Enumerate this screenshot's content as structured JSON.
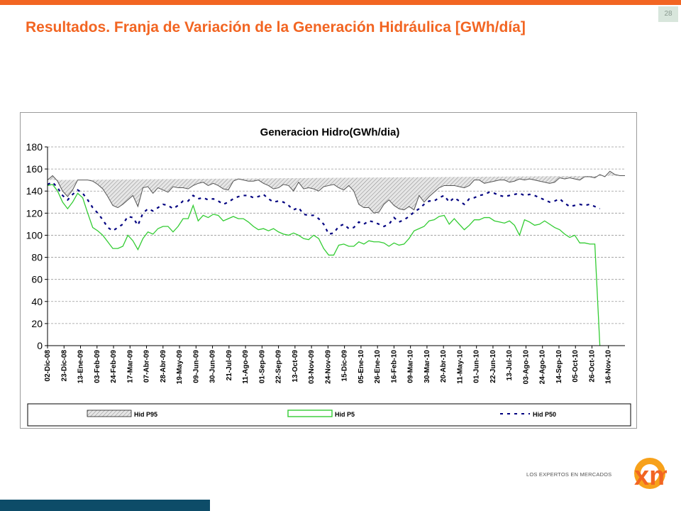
{
  "slide": {
    "page_number": "28",
    "title": "Resultados. Franja de Variación de la Generación Hidráulica [GWh/día]",
    "logo_text": "LOS EXPERTOS EN MERCADOS",
    "logo_mark": "xm"
  },
  "colors": {
    "accent": "#f26522",
    "footer": "#0d4c68",
    "p5_line": "#33cc33",
    "p50_line": "#000080",
    "band": "#d9d9d9"
  },
  "chart_data": {
    "type": "area",
    "title": "Generacion Hidro(GWh/dia)",
    "xlabel": "",
    "ylabel": "",
    "ylim": [
      0,
      180
    ],
    "yticks": [
      0,
      20,
      40,
      60,
      80,
      100,
      120,
      140,
      160,
      180
    ],
    "grid": true,
    "legend_position": "bottom",
    "x_tick_labels": [
      "02-Dic-08",
      "23-Dic-08",
      "13-Ene-09",
      "03-Feb-09",
      "24-Feb-09",
      "17-Mar-09",
      "07-Abr-09",
      "28-Abr-09",
      "19-May-09",
      "09-Jun-09",
      "30-Jun-09",
      "21-Jul-09",
      "11-Ago-09",
      "01-Sep-09",
      "22-Sep-09",
      "13-Oct-09",
      "03-Nov-09",
      "24-Nov-09",
      "15-Dic-09",
      "05-Ene-10",
      "26-Ene-10",
      "16-Feb-10",
      "09-Mar-10",
      "30-Mar-10",
      "20-Abr-10",
      "11-May-10",
      "01-Jun-10",
      "22-Jun-10",
      "13-Jul-10",
      "03-Ago-10",
      "24-Ago-10",
      "14-Sep-10",
      "05-Oct-10",
      "26-Oct-10",
      "16-Nov-10"
    ],
    "series": [
      {
        "name": "Hid P95",
        "values": [
          150,
          154,
          149,
          140,
          135,
          141,
          150,
          150,
          150,
          149,
          146,
          142,
          135,
          127,
          125,
          128,
          132,
          136,
          126,
          143,
          144,
          138,
          143,
          141,
          139,
          144,
          143,
          143,
          142,
          145,
          147,
          148,
          145,
          147,
          145,
          142,
          141,
          149,
          151,
          150,
          149,
          149,
          150,
          147,
          145,
          142,
          143,
          146,
          145,
          140,
          148,
          142,
          143,
          142,
          140,
          144,
          145,
          146,
          143,
          141,
          145,
          140,
          128,
          125,
          125,
          120,
          121,
          128,
          132,
          127,
          124,
          123,
          126,
          123,
          136,
          130,
          135,
          139,
          143,
          145,
          145,
          145,
          144,
          143,
          145,
          150,
          150,
          147,
          148,
          149,
          150,
          150,
          148,
          149,
          151,
          150,
          151,
          150,
          149,
          148,
          147,
          148,
          152,
          151,
          152,
          151,
          150,
          153,
          153,
          152,
          155,
          153,
          158,
          155,
          154,
          154
        ]
      },
      {
        "name": "Hid P5",
        "values": [
          145,
          146,
          140,
          130,
          124,
          130,
          138,
          134,
          120,
          107,
          104,
          100,
          94,
          88,
          88,
          90,
          100,
          95,
          87,
          97,
          103,
          101,
          106,
          108,
          108,
          103,
          108,
          115,
          115,
          127,
          113,
          118,
          116,
          119,
          118,
          113,
          115,
          117,
          115,
          115,
          112,
          108,
          105,
          106,
          104,
          106,
          103,
          101,
          100,
          102,
          100,
          97,
          96,
          100,
          97,
          88,
          82,
          82,
          91,
          92,
          90,
          90,
          94,
          92,
          95,
          94,
          94,
          93,
          90,
          93,
          91,
          92,
          97,
          104,
          106,
          108,
          113,
          114,
          117,
          118,
          110,
          115,
          110,
          105,
          109,
          114,
          114,
          116,
          116,
          113,
          112,
          111,
          113,
          109,
          100,
          114,
          112,
          109,
          110,
          113,
          110,
          107,
          105,
          101,
          98,
          100,
          93,
          93,
          92,
          92,
          0
        ]
      },
      {
        "name": "Hid P50",
        "values": [
          146,
          148,
          143,
          136,
          132,
          137,
          141,
          138,
          132,
          125,
          120,
          114,
          107,
          104,
          107,
          110,
          117,
          116,
          109,
          120,
          124,
          122,
          125,
          128,
          127,
          124,
          127,
          131,
          131,
          136,
          133,
          134,
          132,
          133,
          131,
          128,
          130,
          133,
          135,
          136,
          136,
          134,
          135,
          137,
          133,
          130,
          131,
          130,
          127,
          123,
          125,
          119,
          118,
          118,
          115,
          110,
          101,
          102,
          108,
          110,
          106,
          107,
          112,
          110,
          113,
          112,
          110,
          108,
          110,
          116,
          112,
          114,
          117,
          121,
          124,
          128,
          131,
          131,
          134,
          136,
          130,
          134,
          131,
          128,
          133,
          134,
          136,
          137,
          139,
          138,
          136,
          135,
          136,
          137,
          138,
          136,
          137,
          136,
          134,
          132,
          130,
          131,
          133,
          129,
          126,
          127,
          128,
          127,
          128,
          126,
          124
        ]
      }
    ],
    "legend": [
      {
        "label": "Hid P95",
        "style": "hatched"
      },
      {
        "label": "Hid P5",
        "style": "green"
      },
      {
        "label": "Hid P50",
        "style": "dashed"
      }
    ]
  }
}
